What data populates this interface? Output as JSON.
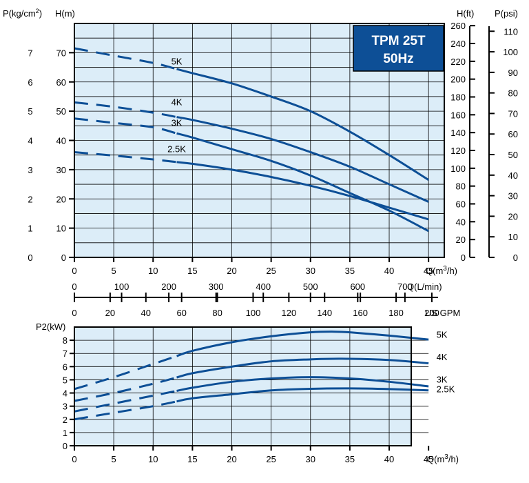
{
  "chart_data": [
    {
      "type": "line",
      "name": "head-chart",
      "title": "TPM 25T",
      "subtitle": "50Hz",
      "x_axis": {
        "label": "Q(m³/h)",
        "label_base": "Q(m",
        "label_sup": "3",
        "label_tail": "/h)",
        "ticks": [
          0,
          5,
          10,
          15,
          20,
          25,
          30,
          35,
          40,
          45
        ],
        "range": [
          0,
          47
        ]
      },
      "y_axis_left": {
        "label": "H(m)",
        "ticks": [
          0,
          10,
          20,
          30,
          40,
          50,
          60,
          70
        ],
        "range": [
          0,
          80
        ]
      },
      "y_axis_pressure_left": {
        "label": "P(kg/cm²)",
        "label_base": "P(kg/cm",
        "label_sup": "2",
        "label_tail": ")",
        "ticks": [
          0,
          1,
          2,
          3,
          4,
          5,
          6,
          7
        ]
      },
      "y_axis_right_ft": {
        "label": "H(ft)",
        "ticks": [
          0,
          20,
          40,
          60,
          80,
          100,
          120,
          140,
          160,
          180,
          200,
          220,
          240,
          260
        ]
      },
      "y_axis_right_psi": {
        "label": "P(psi)",
        "ticks": [
          0,
          10,
          20,
          30,
          40,
          50,
          60,
          70,
          80,
          90,
          100,
          110
        ]
      },
      "secondary_x_axes": [
        {
          "label": "Q(L/min)",
          "ticks": [
            0,
            100,
            200,
            300,
            400,
            500,
            600,
            700
          ]
        },
        {
          "label": "US GPM",
          "ticks": [
            0,
            20,
            40,
            60,
            80,
            100,
            120,
            140,
            160,
            180,
            200
          ]
        }
      ],
      "grid": true,
      "series": [
        {
          "name": "5K",
          "label_at": [
            13,
            66
          ],
          "dashed_until": 13,
          "points": [
            [
              0,
              71.5
            ],
            [
              5,
              69
            ],
            [
              10,
              66.5
            ],
            [
              15,
              63
            ],
            [
              20,
              59.5
            ],
            [
              25,
              55
            ],
            [
              30,
              50
            ],
            [
              35,
              43
            ],
            [
              40,
              35
            ],
            [
              45,
              26.5
            ]
          ]
        },
        {
          "name": "4K",
          "label_at": [
            13,
            52
          ],
          "dashed_until": 13,
          "points": [
            [
              0,
              53
            ],
            [
              5,
              51.5
            ],
            [
              10,
              49.5
            ],
            [
              15,
              47
            ],
            [
              20,
              44
            ],
            [
              25,
              40.5
            ],
            [
              30,
              36
            ],
            [
              35,
              31
            ],
            [
              40,
              25
            ],
            [
              45,
              19
            ]
          ]
        },
        {
          "name": "3K",
          "label_at": [
            13,
            45
          ],
          "dashed_until": 13,
          "points": [
            [
              0,
              47.5
            ],
            [
              5,
              46
            ],
            [
              10,
              44.5
            ],
            [
              15,
              41
            ],
            [
              20,
              37
            ],
            [
              25,
              33
            ],
            [
              30,
              28
            ],
            [
              35,
              22
            ],
            [
              40,
              16
            ],
            [
              45,
              9
            ]
          ]
        },
        {
          "name": "2.5K",
          "label_at": [
            13,
            36
          ],
          "dashed_until": 13,
          "points": [
            [
              0,
              36
            ],
            [
              5,
              34.8
            ],
            [
              10,
              33.5
            ],
            [
              15,
              32
            ],
            [
              20,
              30
            ],
            [
              25,
              27.5
            ],
            [
              30,
              24.5
            ],
            [
              35,
              21
            ],
            [
              40,
              17
            ],
            [
              45,
              13
            ]
          ]
        }
      ]
    },
    {
      "type": "line",
      "name": "power-chart",
      "x_axis": {
        "label": "Q(m³/h)",
        "label_base": "Q(m",
        "label_sup": "3",
        "label_tail": "/h)",
        "ticks": [
          0,
          5,
          10,
          15,
          20,
          25,
          30,
          35,
          40,
          45
        ],
        "range": [
          0,
          47
        ]
      },
      "y_axis_left": {
        "label": "P2(kW)",
        "ticks": [
          0,
          1,
          2,
          3,
          4,
          5,
          6,
          7,
          8
        ],
        "range": [
          0,
          9
        ]
      },
      "grid": true,
      "series": [
        {
          "name": "5K",
          "label_at": [
            46,
            8.2
          ],
          "dashed_until": 13,
          "points": [
            [
              0,
              4.3
            ],
            [
              5,
              5.2
            ],
            [
              10,
              6.2
            ],
            [
              15,
              7.2
            ],
            [
              20,
              7.85
            ],
            [
              25,
              8.3
            ],
            [
              30,
              8.6
            ],
            [
              33,
              8.65
            ],
            [
              35,
              8.6
            ],
            [
              40,
              8.35
            ],
            [
              45,
              8.05
            ]
          ]
        },
        {
          "name": "4K",
          "label_at": [
            46,
            6.5
          ],
          "dashed_until": 13,
          "points": [
            [
              0,
              3.4
            ],
            [
              5,
              4.0
            ],
            [
              10,
              4.7
            ],
            [
              15,
              5.5
            ],
            [
              20,
              6.0
            ],
            [
              25,
              6.4
            ],
            [
              30,
              6.55
            ],
            [
              34,
              6.6
            ],
            [
              40,
              6.5
            ],
            [
              45,
              6.25
            ]
          ]
        },
        {
          "name": "3K",
          "label_at": [
            46,
            4.8
          ],
          "dashed_until": 13,
          "points": [
            [
              0,
              2.6
            ],
            [
              5,
              3.2
            ],
            [
              10,
              3.8
            ],
            [
              15,
              4.4
            ],
            [
              20,
              4.85
            ],
            [
              25,
              5.1
            ],
            [
              30,
              5.2
            ],
            [
              35,
              5.1
            ],
            [
              40,
              4.85
            ],
            [
              45,
              4.5
            ]
          ]
        },
        {
          "name": "2.5K",
          "label_at": [
            46,
            4.05
          ],
          "dashed_until": 13,
          "points": [
            [
              0,
              2.0
            ],
            [
              5,
              2.5
            ],
            [
              10,
              3.0
            ],
            [
              15,
              3.6
            ],
            [
              20,
              3.9
            ],
            [
              25,
              4.2
            ],
            [
              30,
              4.32
            ],
            [
              35,
              4.35
            ],
            [
              40,
              4.3
            ],
            [
              45,
              4.2
            ]
          ]
        }
      ]
    }
  ],
  "colors": {
    "plot_bg": "#dcedf8",
    "curve": "#0d4f96",
    "title_box": "#0d4f96",
    "title_text": "#ffffff"
  }
}
